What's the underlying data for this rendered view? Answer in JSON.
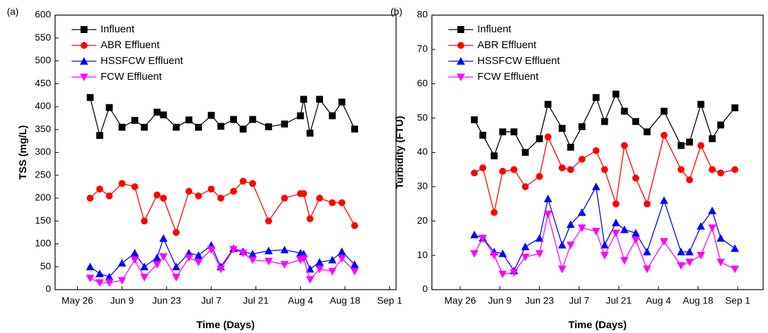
{
  "chart_data": [
    {
      "type": "line",
      "label": "(a)",
      "x_label": "Time (Days)",
      "y_label": "TSS (mg/L)",
      "xlim": [
        "May 19",
        "Sep 3"
      ],
      "xticks": [
        "May 26",
        "Jun 9",
        "Jun 23",
        "Jul 7",
        "Jul 21",
        "Aug 4",
        "Aug 18",
        "Sep 1"
      ],
      "ylim": [
        0,
        600
      ],
      "yticks": [
        0,
        50,
        100,
        150,
        200,
        250,
        300,
        350,
        400,
        450,
        500,
        550,
        600
      ],
      "x": [
        "May 30",
        "Jun 2",
        "Jun 5",
        "Jun 9",
        "Jun 13",
        "Jun 16",
        "Jun 20",
        "Jun 22",
        "Jun 26",
        "Jun 30",
        "Jul 3",
        "Jul 7",
        "Jul 10",
        "Jul 14",
        "Jul 17",
        "Jul 20",
        "Jul 25",
        "Jul 30",
        "Aug 4",
        "Aug 5",
        "Aug 7",
        "Aug 10",
        "Aug 14",
        "Aug 17",
        "Aug 21"
      ],
      "series": [
        {
          "name": "Influent",
          "color": "#000000",
          "marker": "square",
          "values": [
            420,
            337,
            398,
            355,
            370,
            355,
            388,
            382,
            355,
            371,
            355,
            381,
            357,
            372,
            351,
            372,
            356,
            362,
            380,
            416,
            342,
            416,
            380,
            410,
            351
          ]
        },
        {
          "name": "ABR Effluent",
          "color": "#ff0000",
          "marker": "circle",
          "values": [
            200,
            220,
            205,
            232,
            225,
            150,
            207,
            200,
            125,
            215,
            205,
            220,
            200,
            215,
            237,
            232,
            150,
            200,
            210,
            210,
            155,
            200,
            190,
            190,
            140
          ]
        },
        {
          "name": "HSSFCW Effluent",
          "color": "#0000ff",
          "marker": "triangle",
          "values": [
            50,
            35,
            28,
            58,
            80,
            50,
            70,
            112,
            50,
            80,
            75,
            97,
            50,
            90,
            83,
            78,
            85,
            87,
            80,
            78,
            45,
            60,
            65,
            83,
            55
          ]
        },
        {
          "name": "FCW Effluent",
          "color": "#ff00ff",
          "marker": "triangle-down",
          "values": [
            25,
            15,
            15,
            20,
            65,
            27,
            55,
            72,
            27,
            70,
            60,
            88,
            45,
            88,
            80,
            65,
            62,
            55,
            65,
            68,
            22,
            45,
            40,
            68,
            40
          ]
        }
      ]
    },
    {
      "type": "line",
      "label": "(b)",
      "x_label": "Time (Days)",
      "y_label": "Turbidity (FTU)",
      "xlim": [
        "May 16",
        "Sep 10"
      ],
      "xticks": [
        "May 26",
        "Jun 9",
        "Jun 23",
        "Jul 7",
        "Jul 21",
        "Aug 4",
        "Aug 18",
        "Sep 1"
      ],
      "ylim": [
        0,
        80
      ],
      "yticks": [
        0,
        10,
        20,
        30,
        40,
        50,
        60,
        70,
        80
      ],
      "x": [
        "May 31",
        "Jun 3",
        "Jun 7",
        "Jun 10",
        "Jun 14",
        "Jun 18",
        "Jun 23",
        "Jun 26",
        "Jul 1",
        "Jul 4",
        "Jul 8",
        "Jul 13",
        "Jul 16",
        "Jul 20",
        "Jul 23",
        "Jul 27",
        "Jul 31",
        "Aug 6",
        "Aug 12",
        "Aug 15",
        "Aug 19",
        "Aug 23",
        "Aug 26",
        "Aug 31"
      ],
      "series": [
        {
          "name": "Influent",
          "color": "#000000",
          "marker": "square",
          "values": [
            49.5,
            45,
            39,
            46,
            46,
            40,
            44,
            54,
            47,
            41.5,
            47.5,
            56,
            49,
            57,
            52,
            49,
            46,
            52,
            42,
            43,
            54,
            44,
            48,
            53
          ]
        },
        {
          "name": "ABR Effluent",
          "color": "#ff0000",
          "marker": "circle",
          "values": [
            34,
            35.5,
            22.5,
            34.5,
            35,
            30,
            33,
            44.5,
            35.5,
            35,
            38,
            40.5,
            35,
            25,
            42,
            32.5,
            25,
            45,
            35,
            32,
            42,
            35,
            34,
            35
          ]
        },
        {
          "name": "HSSFCW Effluent",
          "color": "#0000ff",
          "marker": "triangle",
          "values": [
            16,
            15,
            11,
            10.5,
            5.5,
            12.5,
            15,
            26.5,
            13,
            19,
            22.5,
            30,
            13,
            19.5,
            17.5,
            16.5,
            11,
            26,
            11,
            11,
            18.5,
            23,
            15,
            12
          ]
        },
        {
          "name": "FCW Effluent",
          "color": "#ff00ff",
          "marker": "triangle-down",
          "values": [
            10.5,
            15,
            10,
            4.5,
            5,
            9.5,
            10.5,
            22,
            6,
            13,
            18,
            17,
            10,
            16.5,
            8.5,
            14.5,
            6,
            14,
            7,
            8,
            10,
            18,
            8,
            6
          ]
        }
      ]
    }
  ]
}
